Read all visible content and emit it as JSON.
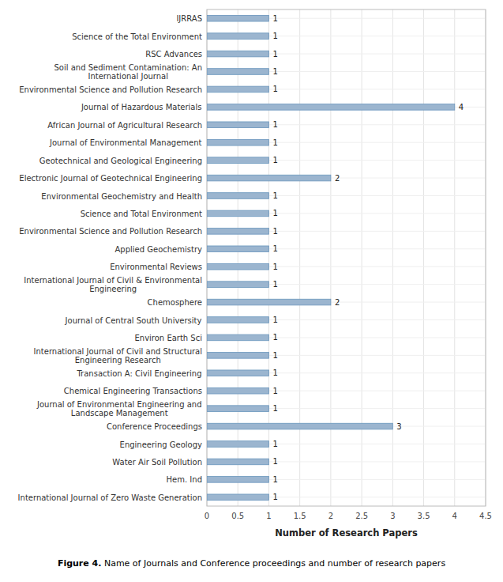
{
  "chart_data": {
    "type": "bar",
    "orientation": "horizontal",
    "categories": [
      "IJRRAS",
      "Science of the Total Environment",
      "RSC Advances",
      "Soil and Sediment Contamination: An\nInternational Journal",
      "Environmental Science and Pollution Research",
      "Journal of Hazardous Materials",
      "African Journal of Agricultural Research",
      "Journal of Environmental Management",
      "Geotechnical and Geological Engineering",
      "Electronic Journal of Geotechnical Engineering",
      "Environmental Geochemistry and Health",
      "Science and Total Environment",
      "Environmental Science and Pollution Research",
      "Applied Geochemistry",
      "Environmental Reviews",
      "International Journal of Civil & Environmental\nEngineering",
      "Chemosphere",
      "Journal of Central South University",
      "Environ Earth Sci",
      "International Journal of Civil and Structural\nEngineering Research",
      "Transaction A: Civil Engineering",
      "Chemical Engineering Transactions",
      "Journal of Environmental Engineering and\nLandscape Management",
      "Conference Proceedings",
      "Engineering Geology",
      "Water Air Soil Pollution",
      "Hem. Ind",
      "International Journal of Zero Waste Generation"
    ],
    "values": [
      1,
      1,
      1,
      1,
      1,
      4,
      1,
      1,
      1,
      2,
      1,
      1,
      1,
      1,
      1,
      1,
      2,
      1,
      1,
      1,
      1,
      1,
      1,
      3,
      1,
      1,
      1,
      1
    ],
    "color": "#9BB5CF",
    "edge_color": "#6A96BC",
    "xlim": [
      0,
      4.5
    ],
    "xticks": [
      0,
      0.5,
      1,
      1.5,
      2,
      2.5,
      3,
      3.5,
      4,
      4.5
    ],
    "xlabel": "Number of Research Papers",
    "caption_bold": "Figure 4.",
    "caption_rest": " Name of Journals and Conference proceedings and number of research papers",
    "grid": true,
    "data_labels": true
  }
}
